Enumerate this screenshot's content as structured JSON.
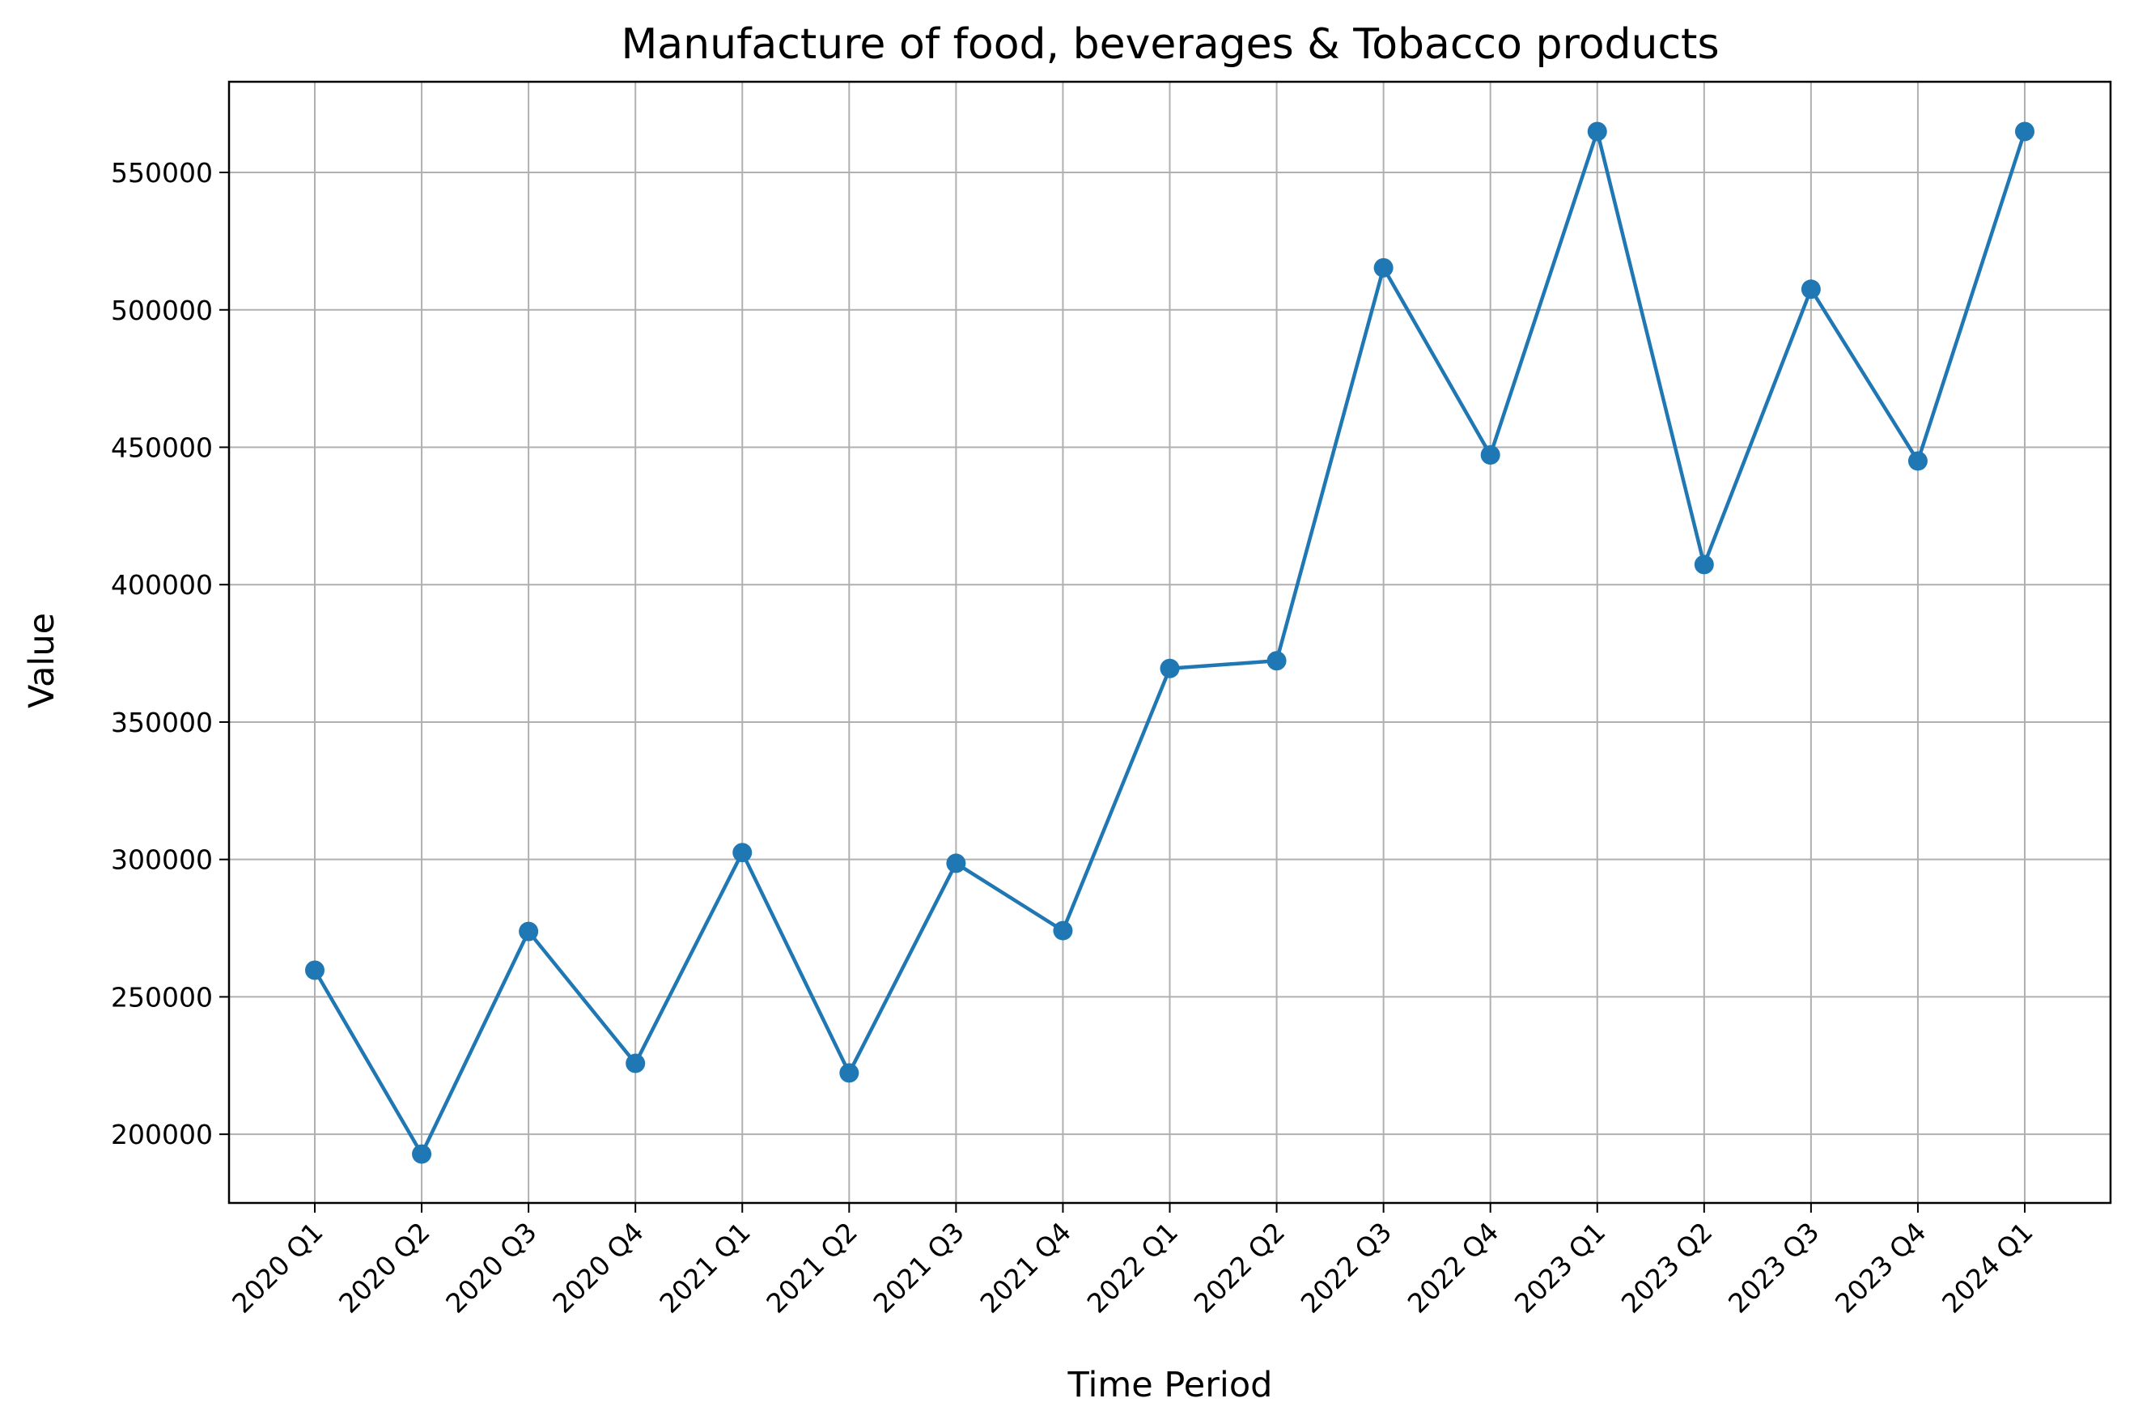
{
  "chart_data": {
    "type": "line",
    "title": "Manufacture of food, beverages & Tobacco products",
    "xlabel": "Time Period",
    "ylabel": "Value",
    "categories": [
      "2020 Q1",
      "2020 Q2",
      "2020 Q3",
      "2020 Q4",
      "2021 Q1",
      "2021 Q2",
      "2021 Q3",
      "2021 Q4",
      "2022 Q1",
      "2022 Q2",
      "2022 Q3",
      "2022 Q4",
      "2023 Q1",
      "2023 Q2",
      "2023 Q3",
      "2023 Q4",
      "2024 Q1"
    ],
    "series": [
      {
        "values": [
          259700,
          192800,
          273800,
          225800,
          302500,
          222300,
          298600,
          274100,
          369500,
          372300,
          515300,
          447200,
          564900,
          407300,
          507500,
          445000,
          564900
        ],
        "color": "#1f77b4",
        "marker": "circle"
      }
    ],
    "ylim": [
      175000,
      583000
    ],
    "yticks": [
      200000,
      250000,
      300000,
      350000,
      400000,
      450000,
      500000,
      550000
    ],
    "ytick_labels": [
      "200000",
      "250000",
      "300000",
      "350000",
      "400000",
      "450000",
      "500000",
      "550000"
    ],
    "grid": true,
    "grid_color": "#b0b0b0",
    "xtick_rotation": 45
  }
}
